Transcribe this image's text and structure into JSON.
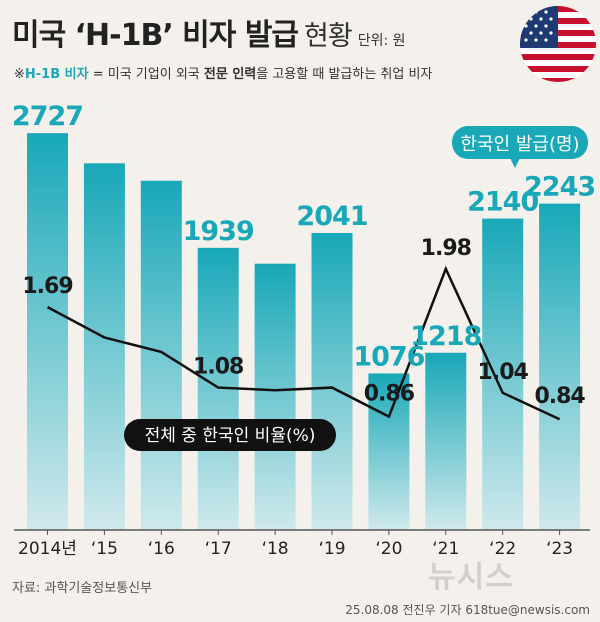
{
  "header": {
    "title": "미국 ‘H-1B’ 비자 발급",
    "subtitle": "현황",
    "unit": "단위: 원"
  },
  "note": {
    "prefix": "※",
    "highlight": "H-1B 비자",
    "part1": " = 미국 기업이 외국 ",
    "bold1": "전문 인력",
    "part2": "을 고용할 때 발급하는 취업 비자"
  },
  "footer": {
    "source": "자료: 과학기술정보통신부",
    "credit": "25.08.08 전진우 기자 618tue@newsis.com",
    "watermark": "뉴시스"
  },
  "colors": {
    "bar_top": "#18a8b8",
    "bar_bottom": "#cfe9ec",
    "bar_label": "#18a8b8",
    "line": "#111111",
    "background": "#f4f1ec"
  },
  "chart_data": {
    "type": "bar",
    "title": "미국 ‘H-1B’ 비자 발급 현황",
    "categories": [
      "2014년",
      "‘15",
      "‘16",
      "‘17",
      "‘18",
      "‘19",
      "‘20",
      "‘21",
      "‘22",
      "‘23"
    ],
    "series": [
      {
        "name": "한국인 발급(명)",
        "type": "bar",
        "values": [
          2727,
          2520,
          2400,
          1939,
          1830,
          2041,
          1076,
          1218,
          2140,
          2243
        ],
        "labels": [
          "2727",
          "",
          "",
          "1939",
          "",
          "2041",
          "1076",
          "1218",
          "2140",
          "2243"
        ]
      },
      {
        "name": "전체 중 한국인 비율(%)",
        "type": "line",
        "values": [
          1.69,
          1.46,
          1.35,
          1.08,
          1.06,
          1.08,
          0.86,
          1.98,
          1.04,
          0.84
        ],
        "labels": [
          "1.69",
          "",
          "",
          "1.08",
          "",
          "",
          "0.86",
          "1.98",
          "1.04",
          "0.84"
        ]
      }
    ],
    "bar_ylim": [
      0,
      2900
    ],
    "line_ylim": [
      0,
      3.2
    ],
    "legend": [
      "한국인 발급(명)",
      "전체 중 한국인 비율(%)"
    ]
  }
}
